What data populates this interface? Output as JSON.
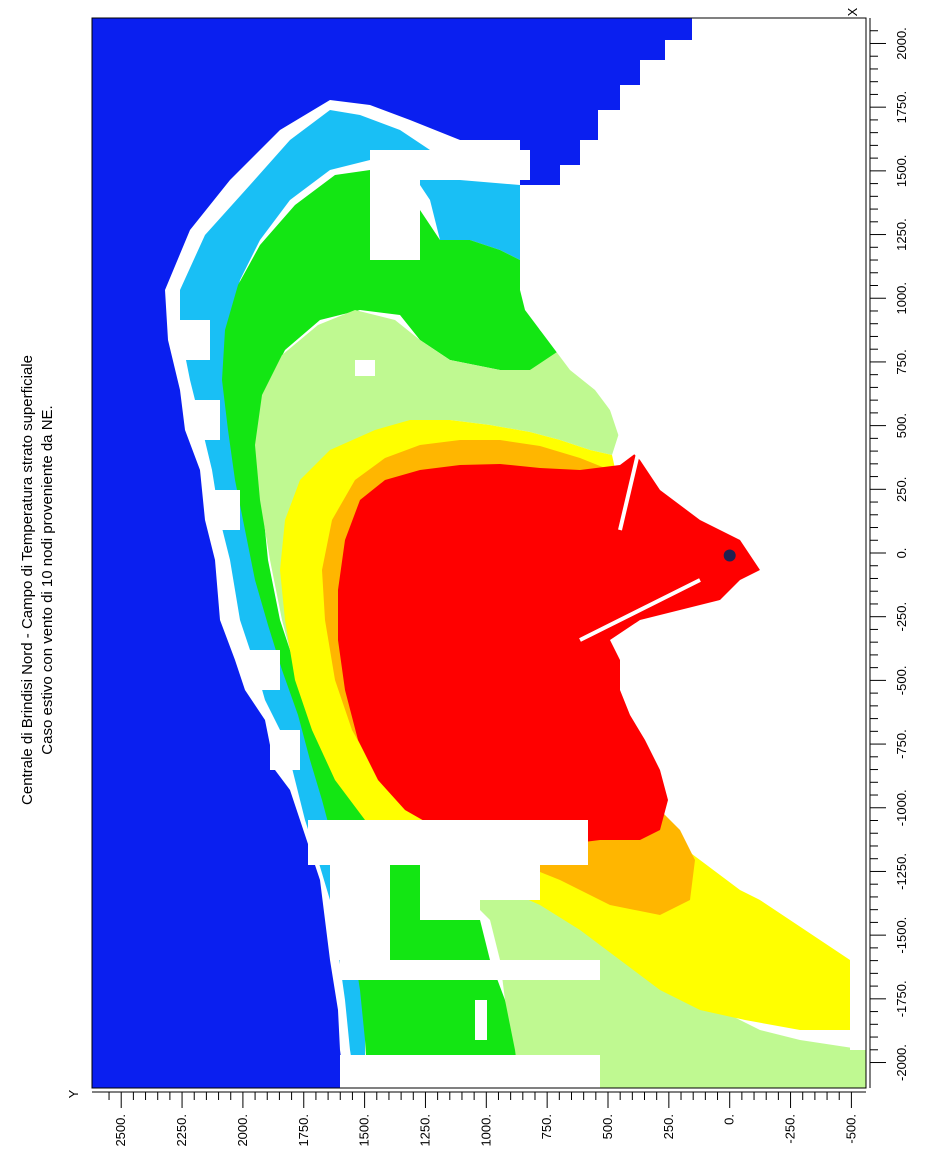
{
  "chart_data": {
    "type": "heatmap",
    "title_lines": [
      "Centrale di Brindisi Nord - Campo di Temperatura strato superficiale",
      "Caso estivo con vento di 10 nodi proveniente da NE."
    ],
    "x_axis_letter": "X",
    "y_axis_letter": "Y",
    "x_ticks": [
      "-2000.",
      "-1750.",
      "-1500.",
      "-1250.",
      "-1000.",
      "-750.",
      "-500.",
      "-250.",
      "0.",
      "250.",
      "500.",
      "750.",
      "1000.",
      "1250.",
      "1500.",
      "1750.",
      "2000."
    ],
    "y_ticks": [
      "2500.",
      "2250.",
      "2000.",
      "1750.",
      "1500.",
      "1250.",
      "1000.",
      "750.",
      "500.",
      "250.",
      "0.",
      "-250.",
      "-500."
    ],
    "xlim": [
      -2100,
      2100
    ],
    "ylim": [
      -560,
      2620
    ],
    "rotated": true,
    "colors": {
      "sea_deep": "#0a1ff0",
      "light_blue": "#19bff5",
      "green": "#13e613",
      "light_green": "#bff991",
      "yellow": "#ffff00",
      "orange": "#ffb600",
      "red": "#ff0000",
      "land": "#ffffff",
      "source_marker": "#202050"
    },
    "source_point": {
      "x": -10,
      "y": 0
    }
  }
}
